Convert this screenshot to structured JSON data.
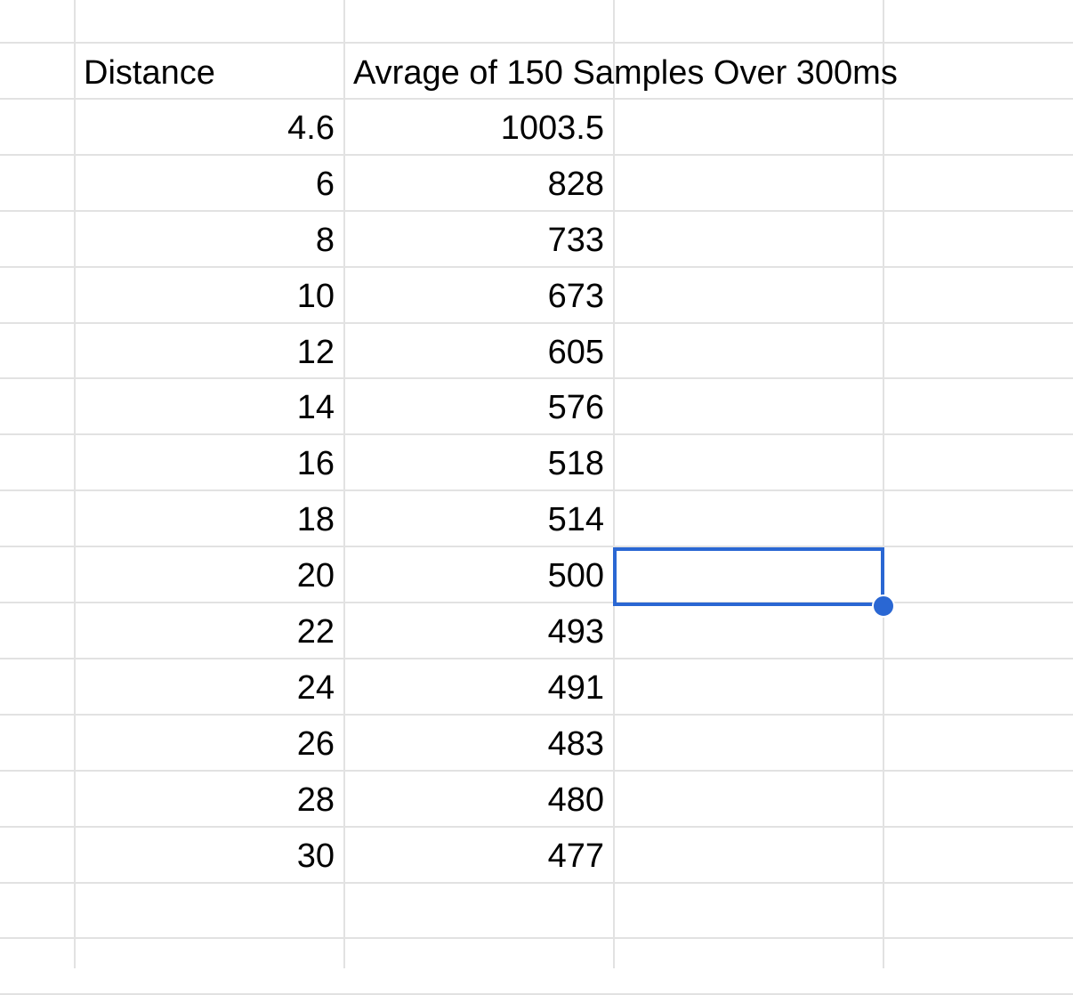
{
  "sheet": {
    "headers": {
      "col_b": "Distance",
      "col_c": "Avrage of 150 Samples Over 300ms"
    },
    "rows": [
      {
        "distance": "4.6",
        "average": "1003.5"
      },
      {
        "distance": "6",
        "average": "828"
      },
      {
        "distance": "8",
        "average": "733"
      },
      {
        "distance": "10",
        "average": "673"
      },
      {
        "distance": "12",
        "average": "605"
      },
      {
        "distance": "14",
        "average": "576"
      },
      {
        "distance": "16",
        "average": "518"
      },
      {
        "distance": "18",
        "average": "514"
      },
      {
        "distance": "20",
        "average": "500"
      },
      {
        "distance": "22",
        "average": "493"
      },
      {
        "distance": "24",
        "average": "491"
      },
      {
        "distance": "26",
        "average": "483"
      },
      {
        "distance": "28",
        "average": "480"
      },
      {
        "distance": "30",
        "average": "477"
      }
    ],
    "selected_cell": {
      "column": "D",
      "row_index": 8,
      "value": ""
    },
    "colors": {
      "gridline": "#e2e2e2",
      "selection": "#2a67d3",
      "text": "#000000"
    }
  }
}
